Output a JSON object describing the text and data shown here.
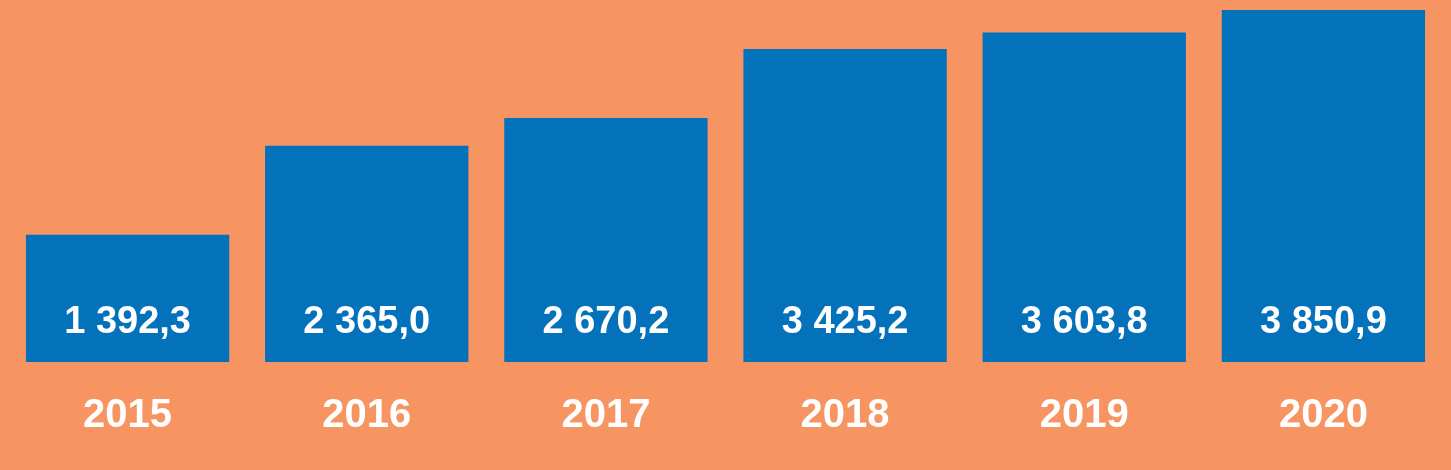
{
  "chart_data": {
    "type": "bar",
    "categories": [
      "2015",
      "2016",
      "2017",
      "2018",
      "2019",
      "2020"
    ],
    "values": [
      1392.3,
      2365.0,
      2670.2,
      3425.2,
      3603.8,
      3850.9
    ],
    "value_labels": [
      "1 392,3",
      "2 365,0",
      "2 670,2",
      "3 425,2",
      "3 603,8",
      "3 850,9"
    ],
    "color": "#0372bb",
    "grid": false,
    "legend": false,
    "tick_labels": "x"
  }
}
